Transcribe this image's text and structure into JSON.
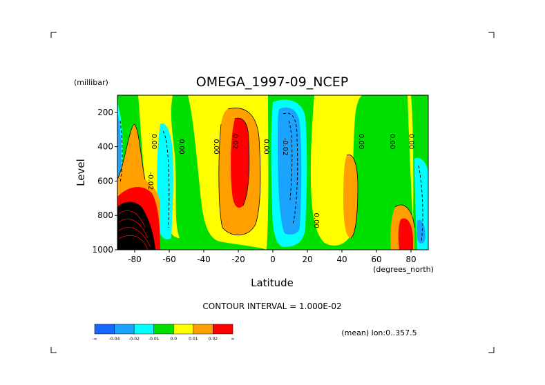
{
  "chart_data": {
    "type": "heatmap",
    "title": "OMEGA_1997-09_NCEP",
    "xlabel": "Latitude",
    "x_units": "(degrees_north)",
    "ylabel": "Level",
    "y_units": "(millibar)",
    "xlim": [
      -90,
      90
    ],
    "ylim": [
      1000,
      100
    ],
    "x_ticks": [
      "-80",
      "-60",
      "-40",
      "-20",
      "0",
      "20",
      "40",
      "60",
      "80"
    ],
    "y_ticks": [
      "200",
      "400",
      "600",
      "800",
      "1000"
    ],
    "contour_interval_text": "CONTOUR INTERVAL = 1.000E-02",
    "footer_text": "(mean) lon:0..357.5",
    "colorbar": {
      "colors": [
        "#1666ff",
        "#1aa3ff",
        "#00ffff",
        "#00e000",
        "#ffff00",
        "#ffa000",
        "#ff0000"
      ],
      "labels": [
        "-∞",
        "-0.04",
        "-0.02",
        "-0.01",
        "0.0",
        "0.01",
        "0.02",
        "∞"
      ]
    },
    "contour_labels": [
      {
        "lat": -72,
        "lev": 600,
        "text": "-0.02"
      },
      {
        "lat": -54,
        "lev": 400,
        "text": "0.00"
      },
      {
        "lat": -34,
        "lev": 400,
        "text": "0.00"
      },
      {
        "lat": -23,
        "lev": 370,
        "text": "0.02"
      },
      {
        "lat": -5,
        "lev": 400,
        "text": "0.00"
      },
      {
        "lat": -70,
        "lev": 370,
        "text": "0.00"
      },
      {
        "lat": 6,
        "lev": 400,
        "text": "-0.02"
      },
      {
        "lat": 24,
        "lev": 830,
        "text": "0.00"
      },
      {
        "lat": 50,
        "lev": 370,
        "text": "0.00"
      },
      {
        "lat": 68,
        "lev": 370,
        "text": "0.00"
      },
      {
        "lat": 79,
        "lev": 370,
        "text": "0.00"
      }
    ],
    "grid": false,
    "legend": "bottom-left colorbar"
  }
}
